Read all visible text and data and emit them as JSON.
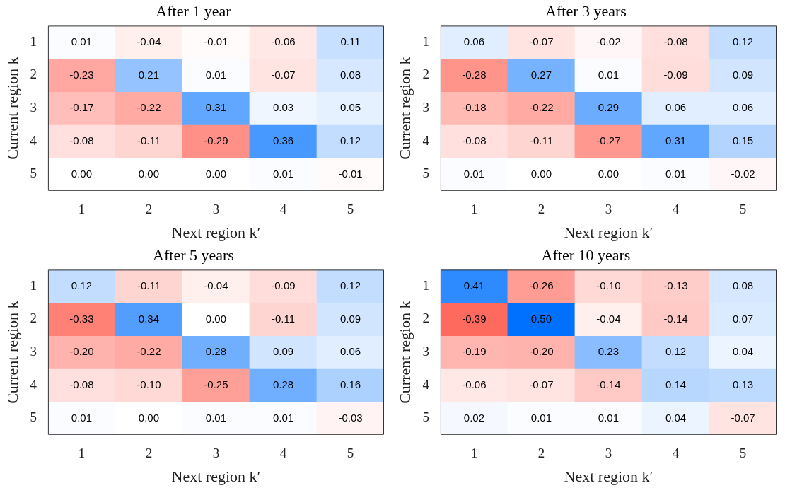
{
  "chart_data": [
    {
      "type": "heatmap",
      "title": "After 1 year",
      "xlabel": "Next region k′",
      "ylabel": "Current region k",
      "categories": [
        "1",
        "2",
        "3",
        "4",
        "5"
      ],
      "y_categories": [
        "1",
        "2",
        "3",
        "4",
        "5"
      ],
      "cells": [
        [
          0.01,
          -0.04,
          -0.01,
          -0.06,
          0.11
        ],
        [
          -0.23,
          0.21,
          0.01,
          -0.07,
          0.08
        ],
        [
          -0.17,
          -0.22,
          0.31,
          0.03,
          0.05
        ],
        [
          -0.08,
          -0.11,
          -0.29,
          0.36,
          0.12
        ],
        [
          0.0,
          0.0,
          0.0,
          0.01,
          -0.01
        ]
      ],
      "cell_labels": [
        [
          "0.01",
          "-0.04",
          "-0.01",
          "-0.06",
          "0.11"
        ],
        [
          "-0.23",
          "0.21",
          "0.01",
          "-0.07",
          "0.08"
        ],
        [
          "-0.17",
          "-0.22",
          "0.31",
          "0.03",
          "0.05"
        ],
        [
          "-0.08",
          "-0.11",
          "-0.29",
          "0.36",
          "0.12"
        ],
        [
          "0.00",
          "0.00",
          "0.00",
          "0.01",
          "-0.01"
        ]
      ]
    },
    {
      "type": "heatmap",
      "title": "After 3 years",
      "xlabel": "Next region k′",
      "ylabel": "Current region k",
      "categories": [
        "1",
        "2",
        "3",
        "4",
        "5"
      ],
      "y_categories": [
        "1",
        "2",
        "3",
        "4",
        "5"
      ],
      "cells": [
        [
          0.06,
          -0.07,
          -0.02,
          -0.08,
          0.12
        ],
        [
          -0.28,
          0.27,
          0.01,
          -0.09,
          0.09
        ],
        [
          -0.18,
          -0.22,
          0.29,
          0.06,
          0.06
        ],
        [
          -0.08,
          -0.11,
          -0.27,
          0.31,
          0.15
        ],
        [
          0.01,
          0.0,
          0.0,
          0.01,
          -0.02
        ]
      ],
      "cell_labels": [
        [
          "0.06",
          "-0.07",
          "-0.02",
          "-0.08",
          "0.12"
        ],
        [
          "-0.28",
          "0.27",
          "0.01",
          "-0.09",
          "0.09"
        ],
        [
          "-0.18",
          "-0.22",
          "0.29",
          "0.06",
          "0.06"
        ],
        [
          "-0.08",
          "-0.11",
          "-0.27",
          "0.31",
          "0.15"
        ],
        [
          "0.01",
          "0.00",
          "0.00",
          "0.01",
          "-0.02"
        ]
      ]
    },
    {
      "type": "heatmap",
      "title": "After 5 years",
      "xlabel": "Next region k′",
      "ylabel": "Current region k",
      "categories": [
        "1",
        "2",
        "3",
        "4",
        "5"
      ],
      "y_categories": [
        "1",
        "2",
        "3",
        "4",
        "5"
      ],
      "cells": [
        [
          0.12,
          -0.11,
          -0.04,
          -0.09,
          0.12
        ],
        [
          -0.33,
          0.34,
          0.0,
          -0.11,
          0.09
        ],
        [
          -0.2,
          -0.22,
          0.28,
          0.09,
          0.06
        ],
        [
          -0.08,
          -0.1,
          -0.25,
          0.28,
          0.16
        ],
        [
          0.01,
          0.0,
          0.01,
          0.01,
          -0.03
        ]
      ],
      "cell_labels": [
        [
          "0.12",
          "-0.11",
          "-0.04",
          "-0.09",
          "0.12"
        ],
        [
          "-0.33",
          "0.34",
          "0.00",
          "-0.11",
          "0.09"
        ],
        [
          "-0.20",
          "-0.22",
          "0.28",
          "0.09",
          "0.06"
        ],
        [
          "-0.08",
          "-0.10",
          "-0.25",
          "0.28",
          "0.16"
        ],
        [
          "0.01",
          "0.00",
          "0.01",
          "0.01",
          "-0.03"
        ]
      ]
    },
    {
      "type": "heatmap",
      "title": "After 10 years",
      "xlabel": "Next region k′",
      "ylabel": "Current region k",
      "categories": [
        "1",
        "2",
        "3",
        "4",
        "5"
      ],
      "y_categories": [
        "1",
        "2",
        "3",
        "4",
        "5"
      ],
      "cells": [
        [
          0.41,
          -0.26,
          -0.1,
          -0.13,
          0.08
        ],
        [
          -0.39,
          0.5,
          -0.04,
          -0.14,
          0.07
        ],
        [
          -0.19,
          -0.2,
          0.23,
          0.12,
          0.04
        ],
        [
          -0.06,
          -0.07,
          -0.14,
          0.14,
          0.13
        ],
        [
          0.02,
          0.01,
          0.01,
          0.04,
          -0.07
        ]
      ],
      "cell_labels": [
        [
          "0.41",
          "-0.26",
          "-0.10",
          "-0.13",
          "0.08"
        ],
        [
          "-0.39",
          "0.50",
          "-0.04",
          "-0.14",
          "0.07"
        ],
        [
          "-0.19",
          "-0.20",
          "0.23",
          "0.12",
          "0.04"
        ],
        [
          "-0.06",
          "-0.07",
          "-0.14",
          "0.14",
          "0.13"
        ],
        [
          "0.02",
          "0.01",
          "0.01",
          "0.04",
          "-0.07"
        ]
      ]
    }
  ]
}
